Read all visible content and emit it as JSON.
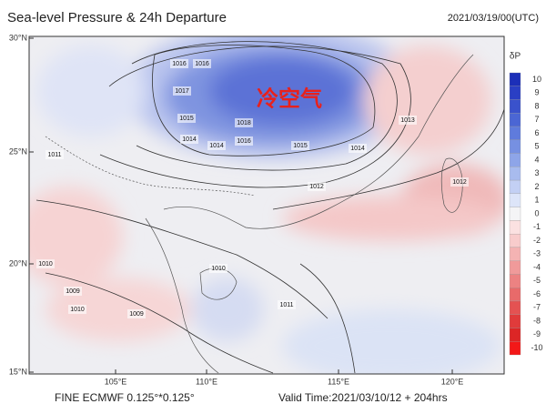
{
  "header": {
    "title": "Sea-level Pressure & 24h Departure",
    "time": "2021/03/19/00(UTC)"
  },
  "axes": {
    "lat_labels": [
      "30°N",
      "25°N",
      "20°N",
      "15°N"
    ],
    "lon_labels": [
      "105°E",
      "110°E",
      "115°E",
      "120°E"
    ]
  },
  "annotation": "冷空气",
  "isobar_labels": [
    "1016",
    "1016",
    "1017",
    "1015",
    "1018",
    "1014",
    "1014",
    "1016",
    "1015",
    "1014",
    "1013",
    "1012",
    "1012",
    "1011",
    "1010",
    "1010",
    "1009",
    "1009",
    "1011",
    "1010"
  ],
  "colorbar": {
    "title": "δP",
    "levels": [
      10,
      9,
      8,
      7,
      6,
      5,
      4,
      3,
      2,
      1,
      0,
      -1,
      -2,
      -3,
      -4,
      -5,
      -6,
      -7,
      -8,
      -9,
      -10
    ],
    "colors": [
      "#1c2fb8",
      "#2a3fc4",
      "#3a52cc",
      "#4b66d4",
      "#5f7bdc",
      "#7690e2",
      "#8ea5e8",
      "#a8bbee",
      "#c3d0f4",
      "#dde5f9",
      "#f4f4f6",
      "#fbe1e1",
      "#f8cccc",
      "#f4b3b3",
      "#f09a9a",
      "#ec8282",
      "#e86a6a",
      "#e45252",
      "#e03b3b",
      "#dc2626",
      "#f31818"
    ]
  },
  "footer": {
    "left": "FINE ECMWF 0.125°*0.125°",
    "right": "Valid Time:2021/03/10/12 + 204hrs"
  }
}
